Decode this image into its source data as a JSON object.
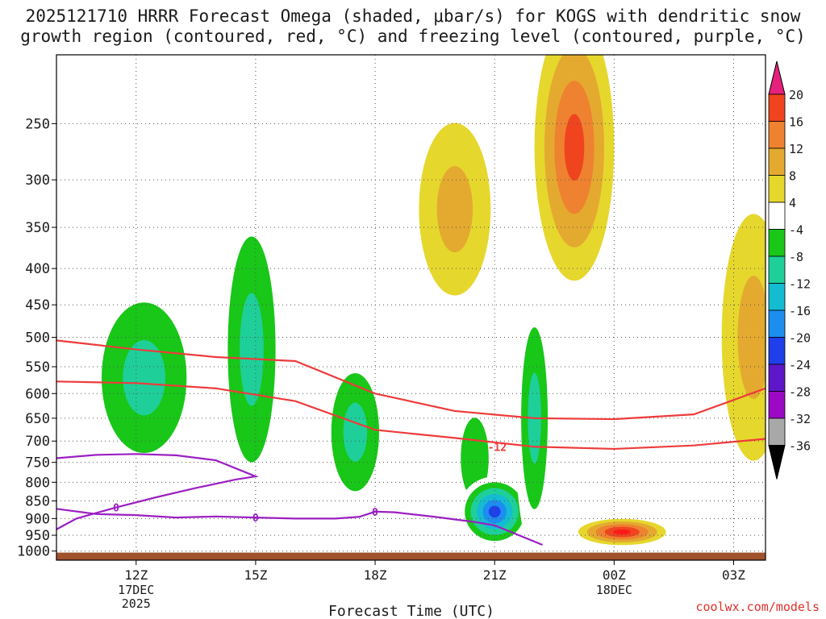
{
  "title": {
    "line1": "2025121710 HRRR Forecast Omega (shaded, μbar/s) for KOGS with dendritic snow",
    "line2": "growth region (contoured, red, °C) and freezing level (contoured, purple, °C)"
  },
  "credit": "coolwx.com/models",
  "colors": {
    "ground": "#a0522d",
    "dgz_contour": "#ee3b3b",
    "freezing_contour": "#9b1fc2",
    "grid": "#555555"
  },
  "chart_data": {
    "type": "heatmap",
    "xlabel": "Forecast Time (UTC)",
    "ylabel": "",
    "xlim": [
      10,
      27.8
    ],
    "ylim_hpa": [
      1030,
      200
    ],
    "x_ticks": [
      {
        "x": 12,
        "label": "12Z",
        "sub": [
          "17DEC",
          "2025"
        ]
      },
      {
        "x": 15,
        "label": "15Z",
        "sub": []
      },
      {
        "x": 18,
        "label": "18Z",
        "sub": []
      },
      {
        "x": 21,
        "label": "21Z",
        "sub": []
      },
      {
        "x": 24,
        "label": "00Z",
        "sub": [
          "18DEC"
        ]
      },
      {
        "x": 27,
        "label": "03Z",
        "sub": []
      }
    ],
    "y_ticks": [
      250,
      300,
      350,
      400,
      450,
      500,
      550,
      600,
      650,
      700,
      750,
      800,
      850,
      900,
      950,
      1000
    ],
    "colorbar": {
      "labels": [
        "20",
        "16",
        "12",
        "8",
        "4",
        "-4",
        "-8",
        "-12",
        "-16",
        "-20",
        "-24",
        "-28",
        "-32",
        "-36"
      ],
      "bands": [
        "#ff1a1a",
        "#f0441f",
        "#ee8230",
        "#e4aa30",
        "#e6d72d",
        "#ffffff",
        "#18c718",
        "#1fcf99",
        "#14bcd2",
        "#1c8ef0",
        "#1f3fea",
        "#5f16c8",
        "#9b09c6",
        "#a8a8a8"
      ],
      "top_arrow": "#e6217d",
      "bottom_arrow": "#000000"
    },
    "omega_features": [
      {
        "name": "rising-12z",
        "x": 12.2,
        "p": 570,
        "rx": 1.6,
        "rp": 200,
        "value": -8,
        "levels": [
          -4,
          -8,
          -12
        ]
      },
      {
        "name": "rising-1430z",
        "x": 14.9,
        "p": 520,
        "rx": 0.9,
        "rp": 260,
        "value": -8,
        "levels": [
          -4,
          -8,
          -12
        ]
      },
      {
        "name": "rising-17z",
        "x": 17.5,
        "p": 680,
        "rx": 0.9,
        "rp": 190,
        "value": -8,
        "levels": [
          -4,
          -8,
          -12
        ]
      },
      {
        "name": "rising-20z",
        "x": 20.5,
        "p": 740,
        "rx": 0.7,
        "rp": 190,
        "value": -8,
        "levels": [
          -4,
          -8
        ]
      },
      {
        "name": "rising-21z-core",
        "x": 21.0,
        "p": 880,
        "rx": 0.9,
        "rp": 100,
        "value": -24,
        "levels": [
          -4,
          -8,
          -12,
          -16,
          -20,
          -24
        ]
      },
      {
        "name": "rising-22z",
        "x": 22.0,
        "p": 650,
        "rx": 0.5,
        "rp": 270,
        "value": -12,
        "levels": [
          -4,
          -8,
          -12
        ]
      },
      {
        "name": "sinking-2230z-aloft",
        "x": 23.0,
        "p": 270,
        "rx": 1.0,
        "rp": 110,
        "value": 16,
        "levels": [
          4,
          8,
          12,
          16
        ]
      },
      {
        "name": "sinking-1930z-aloft",
        "x": 20.0,
        "p": 330,
        "rx": 0.9,
        "rp": 90,
        "value": 8,
        "levels": [
          4,
          8
        ]
      },
      {
        "name": "sinking-00z-low",
        "x": 24.2,
        "p": 940,
        "rx": 1.1,
        "rp": 40,
        "value": 20,
        "levels": [
          4,
          8,
          12,
          16,
          20
        ]
      },
      {
        "name": "sinking-03z-mid",
        "x": 27.5,
        "p": 500,
        "rx": 0.8,
        "rp": 190,
        "value": 8,
        "levels": [
          4,
          8
        ]
      }
    ],
    "dgz_contours": [
      {
        "label": "-12",
        "x": [
          10,
          12,
          14,
          16,
          18,
          20,
          22,
          24,
          26,
          27.8
        ],
        "p": [
          505,
          520,
          533,
          540,
          600,
          635,
          650,
          652,
          642,
          590
        ]
      },
      {
        "label": "-12",
        "x": [
          10,
          12,
          14,
          16,
          18,
          20,
          22,
          24,
          26,
          27.8
        ],
        "p": [
          577,
          580,
          590,
          615,
          675,
          693,
          713,
          718,
          710,
          695
        ]
      }
    ],
    "freezing_contours": [
      {
        "label": "0",
        "x": [
          10,
          11,
          12,
          13,
          14,
          15,
          14.5,
          13.5,
          12.5,
          11.5,
          10.5,
          10
        ],
        "p": [
          740,
          732,
          730,
          733,
          745,
          785,
          793,
          815,
          840,
          868,
          900,
          932
        ]
      },
      {
        "label": "0",
        "x": [
          10,
          11,
          12,
          13,
          14,
          15,
          16,
          17,
          17.6,
          18,
          18.5,
          19.5,
          20.5,
          21,
          22.2
        ],
        "p": [
          872,
          887,
          890,
          897,
          894,
          897,
          900,
          900,
          895,
          880,
          882,
          895,
          910,
          920,
          980
        ]
      }
    ]
  }
}
